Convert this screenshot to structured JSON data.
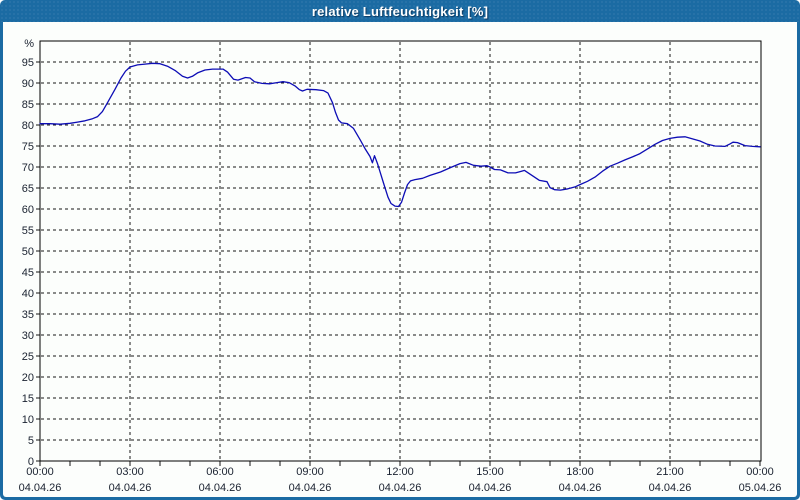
{
  "window": {
    "title": "relative Luftfeuchtigkeit [%]",
    "titlebar_color": "#1b6ba3",
    "border_color": "#1b6ba3"
  },
  "chart_data": {
    "type": "line",
    "title": "relative Luftfeuchtigkeit [%]",
    "ylabel": "%",
    "ylim": [
      0,
      100
    ],
    "yticks": [
      0,
      5,
      10,
      15,
      20,
      25,
      30,
      35,
      40,
      45,
      50,
      55,
      60,
      65,
      70,
      75,
      80,
      85,
      90,
      95
    ],
    "grid": {
      "horizontal": "dashed every 5",
      "vertical": "dashed every 3h",
      "style": "dashed-black"
    },
    "x_hours_range": [
      0,
      24
    ],
    "minor_xtick_every_hours": 1,
    "xticks": [
      {
        "hour": 0,
        "time": "00:00",
        "date": "04.04.26"
      },
      {
        "hour": 3,
        "time": "03:00",
        "date": "04.04.26"
      },
      {
        "hour": 6,
        "time": "06:00",
        "date": "04.04.26"
      },
      {
        "hour": 9,
        "time": "09:00",
        "date": "04.04.26"
      },
      {
        "hour": 12,
        "time": "12:00",
        "date": "04.04.26"
      },
      {
        "hour": 15,
        "time": "15:00",
        "date": "04.04.26"
      },
      {
        "hour": 18,
        "time": "18:00",
        "date": "04.04.26"
      },
      {
        "hour": 21,
        "time": "21:00",
        "date": "04.04.26"
      },
      {
        "hour": 24,
        "time": "00:00",
        "date": "05.04.26"
      }
    ],
    "line_color": "#0d0db5",
    "series": [
      {
        "name": "relative Luftfeuchtigkeit",
        "points": [
          [
            0,
            80.3
          ],
          [
            0.33,
            80.3
          ],
          [
            0.67,
            80.2
          ],
          [
            1.0,
            80.4
          ],
          [
            1.25,
            80.7
          ],
          [
            1.5,
            81.0
          ],
          [
            1.75,
            81.5
          ],
          [
            1.92,
            82.0
          ],
          [
            2.08,
            83.2
          ],
          [
            2.25,
            85.3
          ],
          [
            2.5,
            88.5
          ],
          [
            2.7,
            91.2
          ],
          [
            2.85,
            92.8
          ],
          [
            3.0,
            93.8
          ],
          [
            3.25,
            94.3
          ],
          [
            3.5,
            94.5
          ],
          [
            3.75,
            94.7
          ],
          [
            4.0,
            94.6
          ],
          [
            4.25,
            94.0
          ],
          [
            4.5,
            93.0
          ],
          [
            4.75,
            91.6
          ],
          [
            4.92,
            91.2
          ],
          [
            5.08,
            91.6
          ],
          [
            5.25,
            92.4
          ],
          [
            5.5,
            93.1
          ],
          [
            5.75,
            93.3
          ],
          [
            6.1,
            93.3
          ],
          [
            6.25,
            92.6
          ],
          [
            6.45,
            90.9
          ],
          [
            6.6,
            90.7
          ],
          [
            6.85,
            91.3
          ],
          [
            7.0,
            91.2
          ],
          [
            7.15,
            90.3
          ],
          [
            7.4,
            89.9
          ],
          [
            7.65,
            89.8
          ],
          [
            7.9,
            90.1
          ],
          [
            8.1,
            90.3
          ],
          [
            8.3,
            90.1
          ],
          [
            8.5,
            89.3
          ],
          [
            8.65,
            88.4
          ],
          [
            8.75,
            88.1
          ],
          [
            8.9,
            88.5
          ],
          [
            9.2,
            88.4
          ],
          [
            9.45,
            88.2
          ],
          [
            9.6,
            87.6
          ],
          [
            9.75,
            85.3
          ],
          [
            9.85,
            83.0
          ],
          [
            9.95,
            81.2
          ],
          [
            10.05,
            80.5
          ],
          [
            10.25,
            80.3
          ],
          [
            10.45,
            79.2
          ],
          [
            10.67,
            76.5
          ],
          [
            10.85,
            74.2
          ],
          [
            11.0,
            72.5
          ],
          [
            11.08,
            71.0
          ],
          [
            11.15,
            72.7
          ],
          [
            11.25,
            70.8
          ],
          [
            11.45,
            66.2
          ],
          [
            11.6,
            62.8
          ],
          [
            11.7,
            61.3
          ],
          [
            11.83,
            60.7
          ],
          [
            11.95,
            60.6
          ],
          [
            12.05,
            61.6
          ],
          [
            12.15,
            63.8
          ],
          [
            12.25,
            65.8
          ],
          [
            12.35,
            66.7
          ],
          [
            12.5,
            67.0
          ],
          [
            12.75,
            67.3
          ],
          [
            13.0,
            68.0
          ],
          [
            13.35,
            68.8
          ],
          [
            13.7,
            69.9
          ],
          [
            14.0,
            70.8
          ],
          [
            14.2,
            71.1
          ],
          [
            14.45,
            70.4
          ],
          [
            14.7,
            70.2
          ],
          [
            14.9,
            70.3
          ],
          [
            15.0,
            70.0
          ],
          [
            15.15,
            69.4
          ],
          [
            15.35,
            69.3
          ],
          [
            15.6,
            68.6
          ],
          [
            15.85,
            68.6
          ],
          [
            16.05,
            69.0
          ],
          [
            16.15,
            69.2
          ],
          [
            16.4,
            68.0
          ],
          [
            16.65,
            66.8
          ],
          [
            16.9,
            66.5
          ],
          [
            17.0,
            65.1
          ],
          [
            17.15,
            64.6
          ],
          [
            17.35,
            64.5
          ],
          [
            17.6,
            64.8
          ],
          [
            17.85,
            65.3
          ],
          [
            18.0,
            65.8
          ],
          [
            18.25,
            66.6
          ],
          [
            18.5,
            67.6
          ],
          [
            18.75,
            69.0
          ],
          [
            19.0,
            70.2
          ],
          [
            19.25,
            70.9
          ],
          [
            19.5,
            71.7
          ],
          [
            19.75,
            72.4
          ],
          [
            20.0,
            73.2
          ],
          [
            20.25,
            74.3
          ],
          [
            20.5,
            75.4
          ],
          [
            20.75,
            76.3
          ],
          [
            21.0,
            76.8
          ],
          [
            21.25,
            77.1
          ],
          [
            21.5,
            77.2
          ],
          [
            21.75,
            76.7
          ],
          [
            22.0,
            76.2
          ],
          [
            22.25,
            75.4
          ],
          [
            22.5,
            75.0
          ],
          [
            22.83,
            74.9
          ],
          [
            23.0,
            75.5
          ],
          [
            23.1,
            75.9
          ],
          [
            23.25,
            75.8
          ],
          [
            23.5,
            75.1
          ],
          [
            23.75,
            74.9
          ],
          [
            24.0,
            74.8
          ]
        ]
      }
    ]
  }
}
